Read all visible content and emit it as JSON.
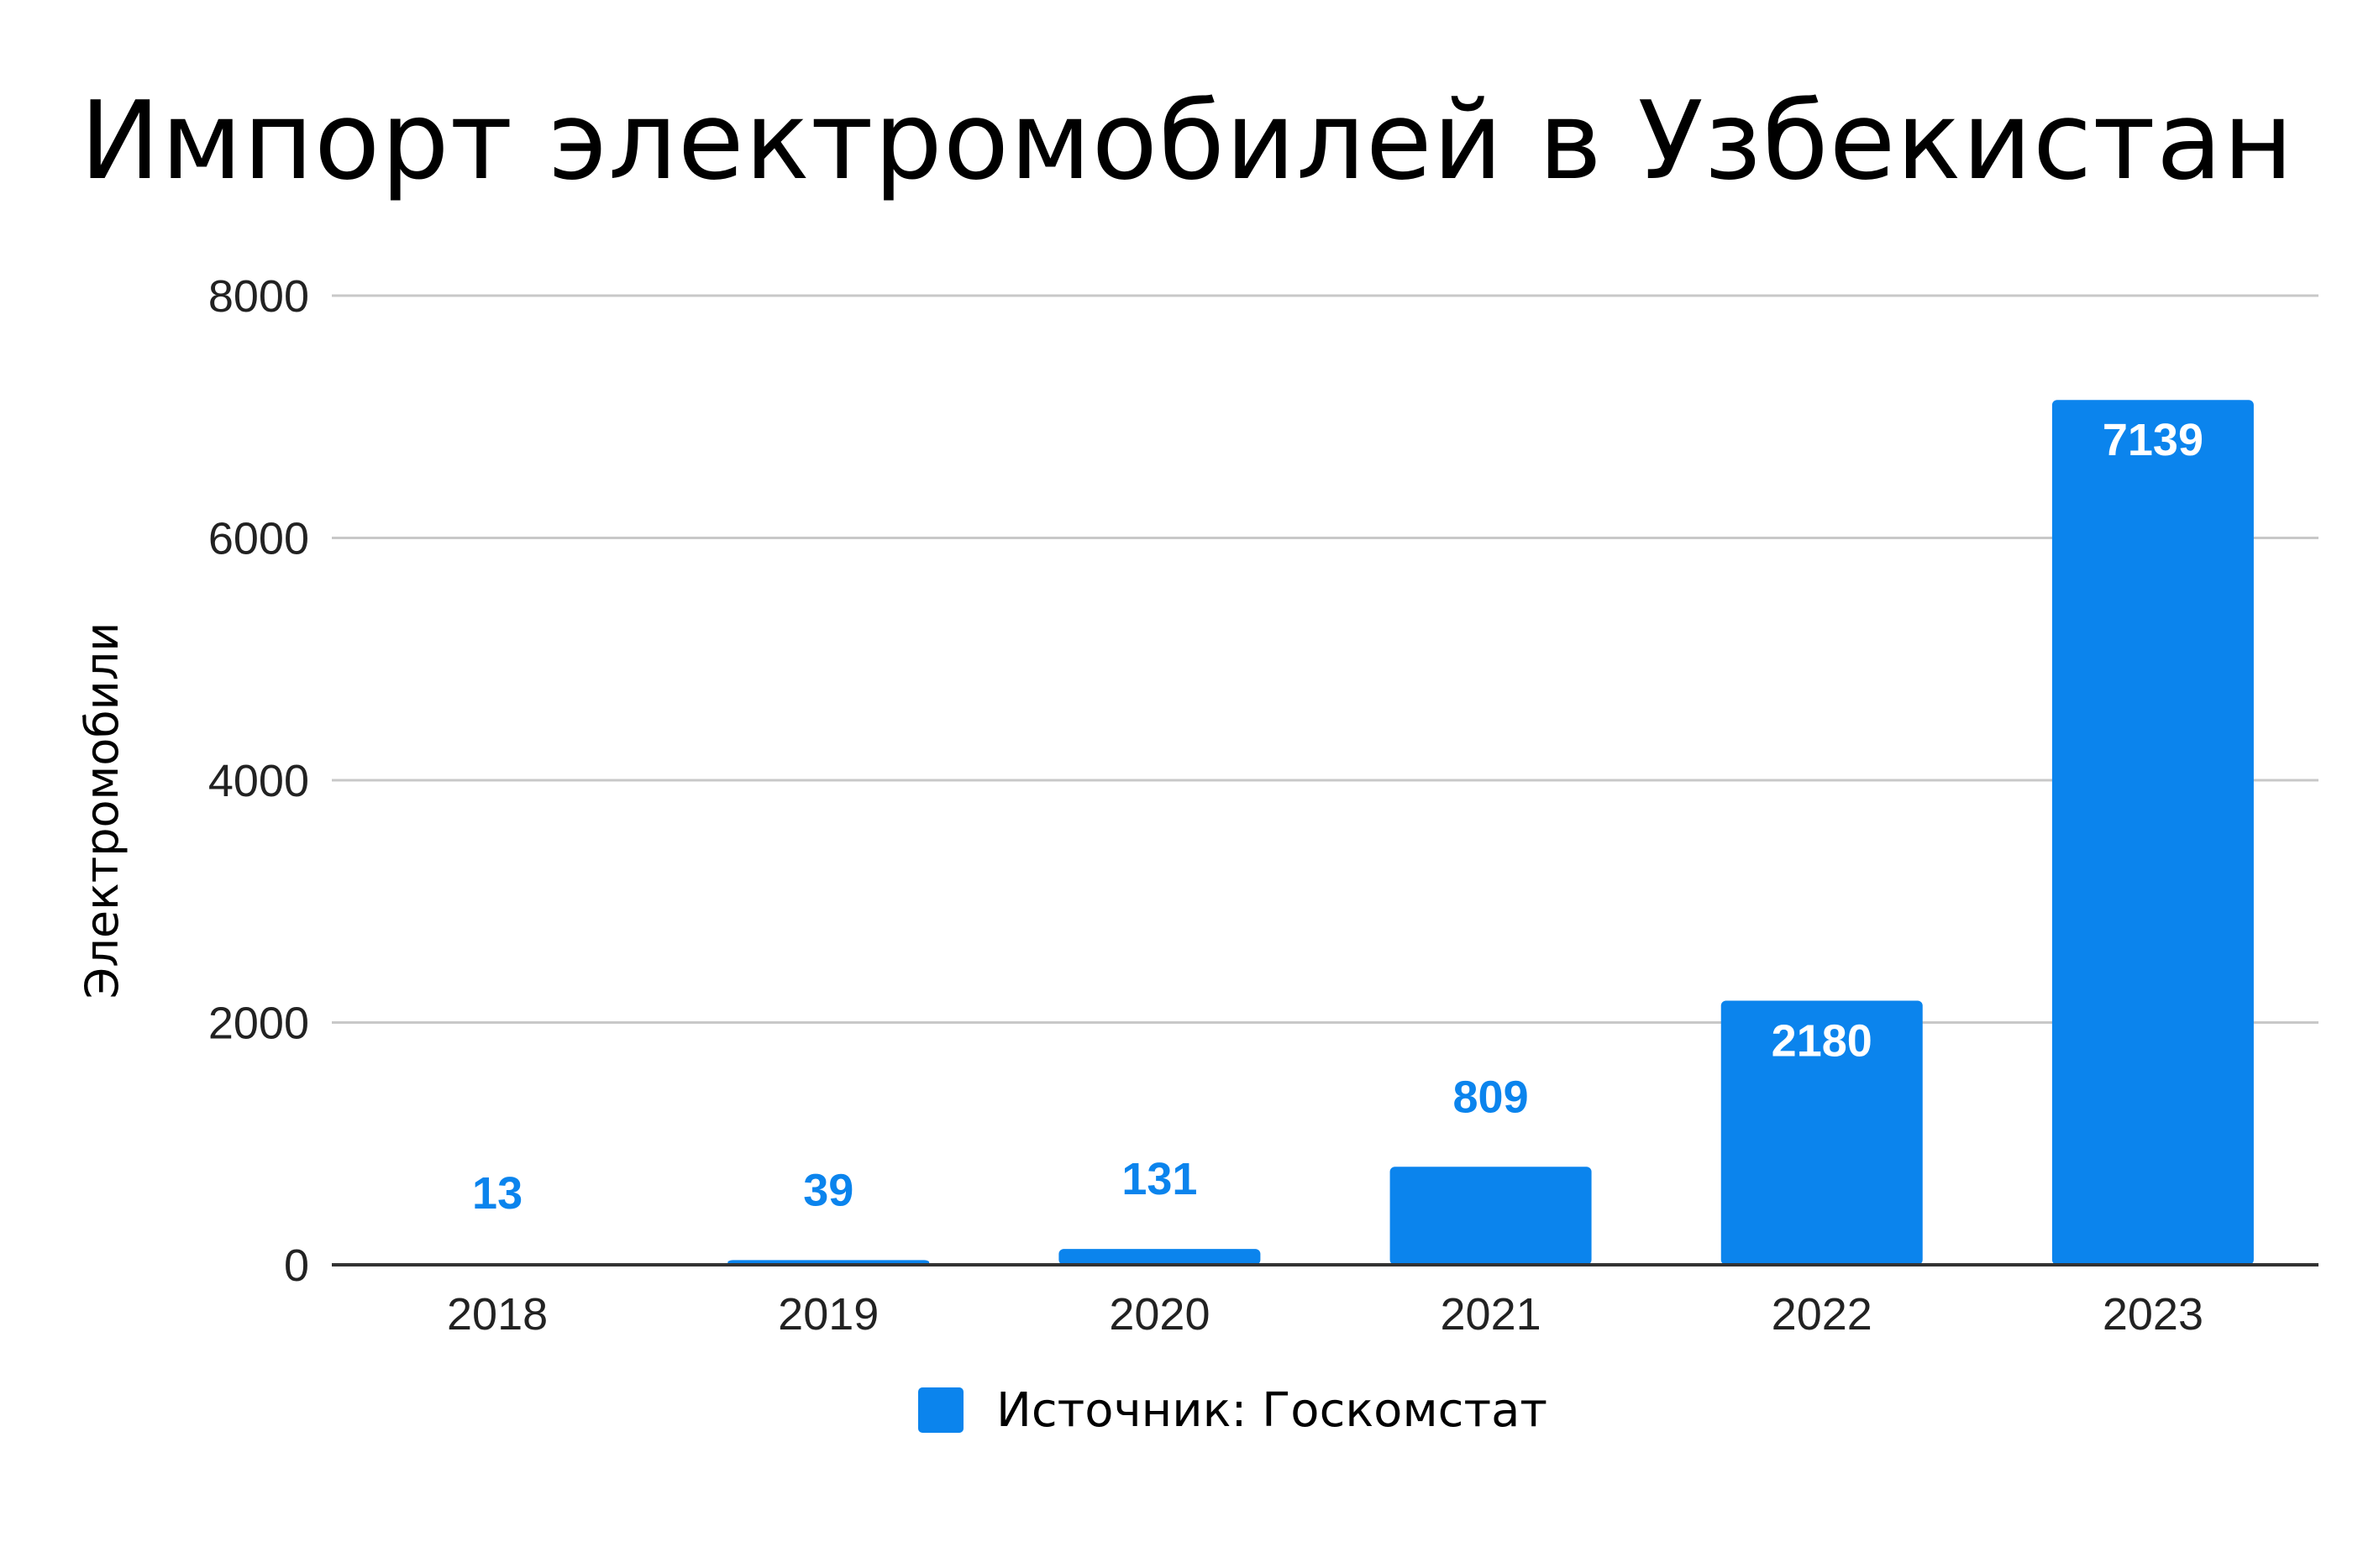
{
  "chart_data": {
    "type": "bar",
    "title": "Импорт электромобилей в Узбекистан",
    "ylabel": "Электромобили",
    "xlabel": "",
    "categories": [
      "2018",
      "2019",
      "2020",
      "2021",
      "2022",
      "2023"
    ],
    "series": [
      {
        "name": "Источник: Госкомстат",
        "values": [
          13,
          39,
          131,
          809,
          2180,
          7139
        ]
      }
    ],
    "ylim": [
      0,
      8000
    ],
    "yticks": [
      0,
      2000,
      4000,
      6000,
      8000
    ],
    "grid": true,
    "legend_position": "bottom",
    "colors": {
      "bar": "#0b84ed",
      "label_inside": "#ffffff",
      "label_outside": "#0b84ed",
      "grid": "#c8c8c8",
      "axis": "#333333"
    }
  }
}
